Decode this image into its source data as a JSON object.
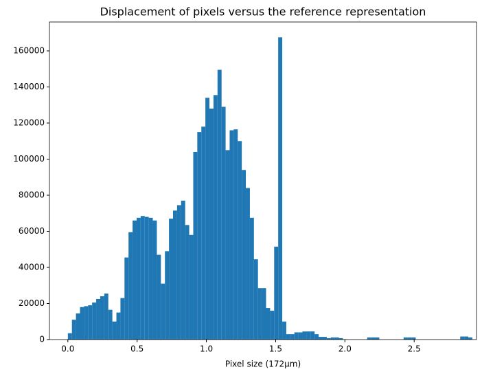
{
  "chart_data": {
    "type": "histogram",
    "title": "Displacement of pixels versus the reference representation",
    "x_label": "Pixel size (172µm)",
    "color": "#1f77b4",
    "bins": [
      0,
      0.0292,
      0.0584,
      0.0876,
      0.1168,
      0.146,
      0.1752,
      0.2044,
      0.2336,
      0.2628,
      0.292,
      0.3212,
      0.3504,
      0.3796,
      0.4088,
      0.438,
      0.4672,
      0.4964,
      0.5256,
      0.5548,
      0.584,
      0.6132,
      0.6424,
      0.6716,
      0.7008,
      0.73,
      0.7592,
      0.7884,
      0.8176,
      0.8468,
      0.876,
      0.9052,
      0.9344,
      0.9636,
      0.9928,
      1.022,
      1.0512,
      1.0804,
      1.1096,
      1.1388,
      1.168,
      1.1972,
      1.2264,
      1.2556,
      1.2848,
      1.314,
      1.3432,
      1.3724,
      1.4016,
      1.4308,
      1.46,
      1.4892,
      1.5184,
      1.5476,
      1.5768,
      1.606,
      1.6352,
      1.6644,
      1.6936,
      1.7228,
      1.752,
      1.7812,
      1.8104,
      1.8396,
      1.8688,
      1.898,
      1.9272,
      1.9564,
      1.9856,
      2.0148,
      2.044,
      2.0732,
      2.1024,
      2.1316,
      2.1608,
      2.19,
      2.2192,
      2.2484,
      2.2776,
      2.3068,
      2.336,
      2.3652,
      2.3944,
      2.4236,
      2.4528,
      2.482,
      2.5112,
      2.5404,
      2.5696,
      2.5988,
      2.628,
      2.6572,
      2.6864,
      2.7156,
      2.7448,
      2.774,
      2.8032,
      2.8324,
      2.8616,
      2.8908,
      2.92
    ],
    "counts": [
      3500,
      11000,
      14500,
      18000,
      18500,
      19000,
      20500,
      22500,
      24000,
      25500,
      16500,
      10000,
      15000,
      23000,
      45500,
      59500,
      66000,
      67500,
      68500,
      68000,
      67500,
      66000,
      47000,
      31000,
      49000,
      67000,
      71500,
      74500,
      77000,
      63500,
      58000,
      104000,
      115000,
      118000,
      134000,
      128000,
      135500,
      149500,
      129000,
      105000,
      116000,
      116500,
      110000,
      94000,
      84000,
      67500,
      44500,
      28500,
      28500,
      17500,
      16000,
      51500,
      167500,
      10000,
      3000,
      3000,
      4000,
      4000,
      4500,
      4500,
      4500,
      3000,
      1500,
      1500,
      800,
      1200,
      1200,
      800,
      200,
      0,
      0,
      0,
      0,
      0,
      1200,
      1200,
      1200,
      0,
      0,
      0,
      0,
      0,
      0,
      1200,
      1200,
      1200,
      0,
      0,
      0,
      0,
      0,
      0,
      0,
      0,
      0,
      0,
      0,
      1700,
      1700,
      1200
    ],
    "xlim": [
      -0.133,
      2.95
    ],
    "ylim": [
      0,
      176000
    ],
    "xticks": [
      {
        "value": 0,
        "label": "0.0"
      },
      0.5,
      {
        "value": 1,
        "label": "1.0"
      },
      1.5,
      {
        "value": 2,
        "label": "2.0"
      },
      2.5
    ],
    "yticks": [
      0,
      20000,
      40000,
      60000,
      80000,
      100000,
      120000,
      140000,
      160000
    ]
  }
}
